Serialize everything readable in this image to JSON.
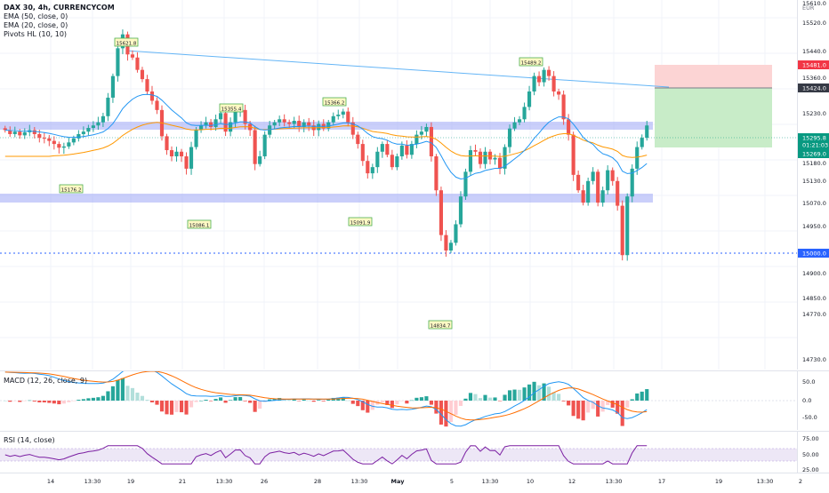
{
  "header": {
    "symbol_line": "DAX 30, 4h, CURRENCYCOM",
    "indicators": [
      "EMA (50, close, 0)",
      "EMA (20, close, 0)",
      "Pivots HL (10, 10)"
    ]
  },
  "currency": "EUR",
  "price_axis": {
    "labels": [
      "15610.0",
      "15520.0",
      "15440.0",
      "15360.0",
      "15230.0",
      "15180.0",
      "15130.0",
      "15070.0",
      "14950.0",
      "14900.0",
      "14850.0",
      "14770.0",
      "14730.0"
    ]
  },
  "price_tags": [
    {
      "id": "stop",
      "text": "15481.0",
      "bg": "#f23645"
    },
    {
      "id": "last",
      "text": "15424.0",
      "bg": "#363a45"
    },
    {
      "id": "current",
      "text": "15295.8",
      "bg": "#089981"
    },
    {
      "id": "countdown",
      "text": "01:21:03",
      "bg": "#089981"
    },
    {
      "id": "target",
      "text": "15269.0",
      "bg": "#089981"
    },
    {
      "id": "level",
      "text": "15000.0",
      "bg": "#2962ff"
    }
  ],
  "pivot_labels": [
    {
      "text": "15621.8",
      "kind": "high"
    },
    {
      "text": "15176.2",
      "kind": "low"
    },
    {
      "text": "15086.1",
      "kind": "low"
    },
    {
      "text": "15355.4",
      "kind": "high"
    },
    {
      "text": "15366.2",
      "kind": "high"
    },
    {
      "text": "15091.9",
      "kind": "low"
    },
    {
      "text": "14834.7",
      "kind": "low"
    },
    {
      "text": "15489.2",
      "kind": "high"
    }
  ],
  "macd": {
    "title": "MACD (12, 26, close, 9)",
    "labels": [
      "50.0",
      "0.0",
      "-50.0"
    ]
  },
  "rsi": {
    "title": "RSI (14, close)",
    "labels": [
      "75.00",
      "50.00",
      "25.00"
    ]
  },
  "time_axis": {
    "labels": [
      "14",
      "13:30",
      "19",
      "21",
      "13:30",
      "26",
      "28",
      "13:30",
      "May",
      "5",
      "13:30",
      "10",
      "12",
      "13:30",
      "17",
      "19",
      "13:30",
      "2"
    ]
  },
  "colors": {
    "up": "#26a69a",
    "down": "#ef5350",
    "ema20": "#2196f3",
    "ema50": "#ff9800",
    "trendline": "#64b5f6",
    "zone": "#9fa8f5",
    "long_profit": "#c8ecc8",
    "long_loss": "#fcd4d4",
    "macd_line": "#2196f3",
    "signal_line": "#ff6d00",
    "rsi_line": "#7b1fa2",
    "rsi_band": "#ede7f6"
  }
}
